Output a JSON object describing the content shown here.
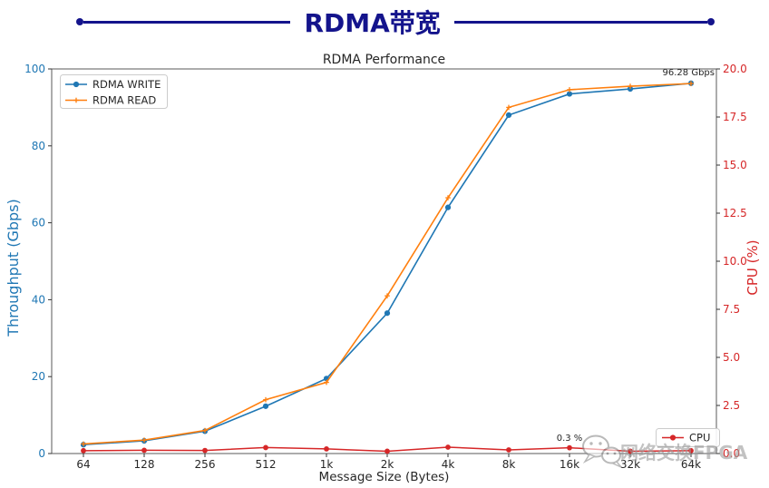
{
  "header": {
    "title": "RDMA带宽",
    "accent_color": "#14148c"
  },
  "watermark": {
    "text": "网络交换FPGA",
    "icon": "wechat-icon"
  },
  "chart_data": {
    "type": "line",
    "title": "RDMA Performance",
    "xlabel": "Message Size (Bytes)",
    "categories": [
      "64",
      "128",
      "256",
      "512",
      "1k",
      "2k",
      "4k",
      "8k",
      "16k",
      "32k",
      "64k"
    ],
    "left_axis": {
      "label": "Throughput (Gbps)",
      "min": 0,
      "max": 100,
      "ticks": [
        0,
        20,
        40,
        60,
        80,
        100
      ],
      "color": "#1f77b4"
    },
    "right_axis": {
      "label": "CPU (%)",
      "min": 0,
      "max": 20,
      "ticks": [
        "0.0",
        "2.5",
        "5.0",
        "7.5",
        "10.0",
        "12.5",
        "15.0",
        "17.5",
        "20.0"
      ],
      "color": "#d62728"
    },
    "series": [
      {
        "name": "RDMA WRITE",
        "axis": "left",
        "color": "#1f77b4",
        "marker": "circle",
        "values": [
          2.3,
          3.3,
          5.8,
          12.3,
          19.5,
          36.5,
          64.0,
          88.0,
          93.5,
          94.8,
          96.28
        ]
      },
      {
        "name": "RDMA READ",
        "axis": "left",
        "color": "#ff7f0e",
        "marker": "plus",
        "values": [
          2.5,
          3.5,
          6.0,
          14.0,
          18.5,
          41.0,
          66.5,
          90.0,
          94.6,
          95.5,
          96.2
        ]
      },
      {
        "name": "CPU",
        "axis": "right",
        "color": "#d62728",
        "marker": "circle",
        "values": [
          0.15,
          0.17,
          0.16,
          0.31,
          0.24,
          0.12,
          0.33,
          0.19,
          0.3,
          0.12,
          0.15
        ]
      }
    ],
    "legends": [
      {
        "position": "upper-left",
        "entries": [
          "RDMA WRITE",
          "RDMA READ"
        ]
      },
      {
        "position": "lower-right",
        "entries": [
          "CPU"
        ]
      }
    ],
    "annotations": [
      {
        "text": "96.28 Gbps",
        "position": "top-right"
      },
      {
        "text": "0.3 %",
        "position": "above-cpu-16k"
      }
    ]
  }
}
